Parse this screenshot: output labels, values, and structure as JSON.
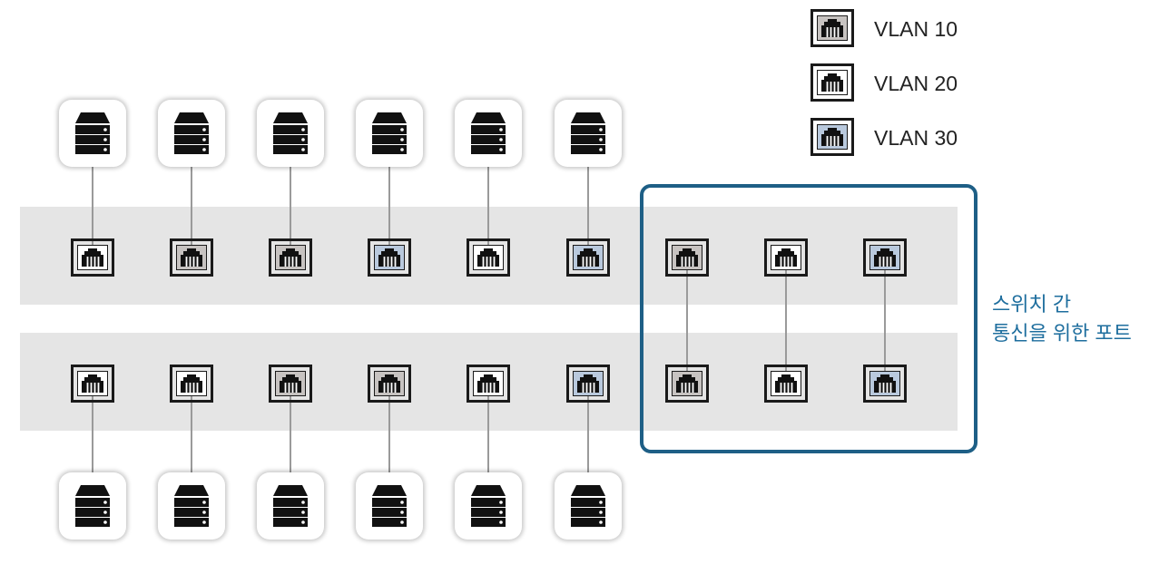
{
  "vlan_colors": {
    "vlan10": "#c7c3c1",
    "vlan20": "#ffffff",
    "vlan30": "#b9c9dd"
  },
  "legend": [
    {
      "vlan": "vlan10",
      "label": "VLAN 10",
      "icon": "ethernet-port-icon"
    },
    {
      "vlan": "vlan20",
      "label": "VLAN 20",
      "icon": "ethernet-port-icon"
    },
    {
      "vlan": "vlan30",
      "label": "VLAN 30",
      "icon": "ethernet-port-icon"
    }
  ],
  "switches": {
    "top": {
      "ports": [
        "vlan20",
        "vlan10",
        "vlan10",
        "vlan30",
        "vlan20",
        "vlan30",
        "vlan10",
        "vlan20",
        "vlan30"
      ]
    },
    "bottom": {
      "ports": [
        "vlan20",
        "vlan20",
        "vlan10",
        "vlan10",
        "vlan20",
        "vlan30",
        "vlan10",
        "vlan20",
        "vlan30"
      ]
    }
  },
  "servers_per_switch": 6,
  "trunk_links": 3,
  "annotation": {
    "line1": "스위치 간",
    "line2": "통신을 위한 포트",
    "color": "#1e6e9e",
    "box_color": "#1e5f86"
  }
}
